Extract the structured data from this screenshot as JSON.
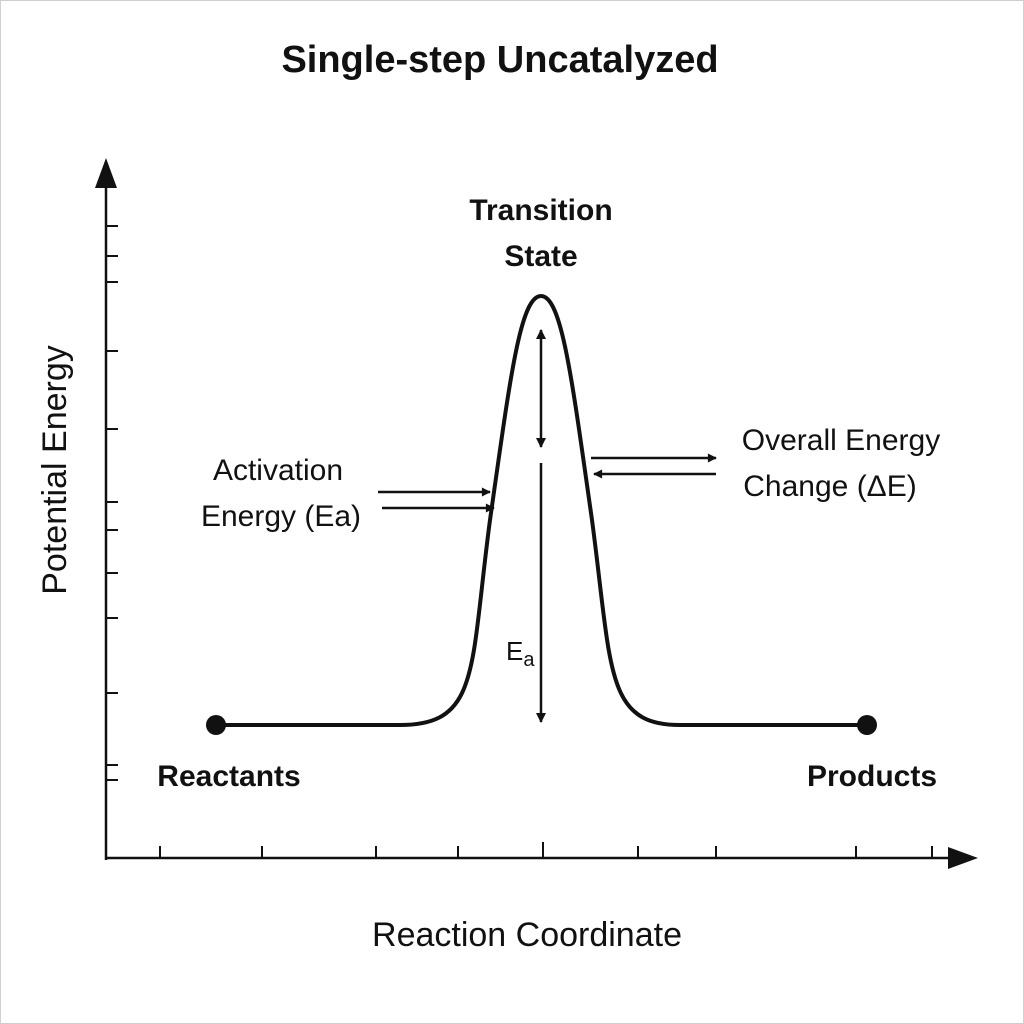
{
  "title": "Single-step Uncatalyzed",
  "axes": {
    "y_label": "Potential Energy",
    "x_label": "Reaction Coordinate"
  },
  "labels": {
    "transition_state_line1": "Transition",
    "transition_state_line2": "State",
    "activation_line1": "Activation",
    "activation_line2": "Energy (Ea)",
    "overall_line1": "Overall Energy",
    "overall_line2": "Change (ΔE)",
    "ea_main": "E",
    "ea_sub": "a",
    "reactants": "Reactants",
    "products": "Products"
  },
  "energy_profile": {
    "reactants_energy": 0,
    "products_energy": 0,
    "transition_state_energy": 1
  },
  "colors": {
    "ink": "#111111",
    "background": "#ffffff"
  }
}
